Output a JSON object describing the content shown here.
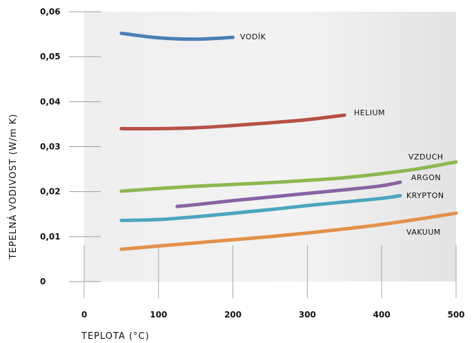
{
  "chart_data": {
    "type": "line",
    "xlabel": "TEPLOTA (°C)",
    "ylabel": "TEPELNÁ VODIVOST (W/m K)",
    "xlim": [
      0,
      500
    ],
    "ylim": [
      0,
      0.06
    ],
    "x_ticks": [
      0,
      100,
      200,
      300,
      400,
      500
    ],
    "x_tick_labels": [
      "0",
      "100",
      "200",
      "300",
      "400",
      "500"
    ],
    "y_ticks": [
      0,
      0.01,
      0.02,
      0.03,
      0.04,
      0.05,
      0.06
    ],
    "y_tick_labels": [
      "0",
      "0,01",
      "0,02",
      "0,03",
      "0,04",
      "0,05",
      "0,06"
    ],
    "grid": false,
    "series": [
      {
        "name": "VODÍK",
        "color": "#4a7fb5",
        "points": [
          [
            50,
            0.0552
          ],
          [
            100,
            0.0542
          ],
          [
            150,
            0.0539
          ],
          [
            200,
            0.0543
          ]
        ]
      },
      {
        "name": "HELIUM",
        "color": "#b85048",
        "points": [
          [
            50,
            0.034
          ],
          [
            100,
            0.034
          ],
          [
            150,
            0.0342
          ],
          [
            200,
            0.0347
          ],
          [
            250,
            0.0353
          ],
          [
            300,
            0.036
          ],
          [
            350,
            0.037
          ]
        ]
      },
      {
        "name": "VZDUCH",
        "color": "#8cb850",
        "points": [
          [
            50,
            0.0201
          ],
          [
            100,
            0.0207
          ],
          [
            150,
            0.0212
          ],
          [
            200,
            0.0216
          ],
          [
            250,
            0.022
          ],
          [
            300,
            0.0225
          ],
          [
            350,
            0.0231
          ],
          [
            400,
            0.024
          ],
          [
            450,
            0.0251
          ],
          [
            500,
            0.0266
          ]
        ]
      },
      {
        "name": "ARGON",
        "color": "#8a63a3",
        "points": [
          [
            125,
            0.0167
          ],
          [
            150,
            0.0171
          ],
          [
            200,
            0.018
          ],
          [
            250,
            0.0188
          ],
          [
            300,
            0.0196
          ],
          [
            350,
            0.0204
          ],
          [
            400,
            0.0213
          ],
          [
            425,
            0.0221
          ]
        ]
      },
      {
        "name": "KRYPTON",
        "color": "#4ba6bd",
        "points": [
          [
            50,
            0.0136
          ],
          [
            100,
            0.0138
          ],
          [
            150,
            0.0144
          ],
          [
            200,
            0.0152
          ],
          [
            250,
            0.016
          ],
          [
            300,
            0.0169
          ],
          [
            350,
            0.0177
          ],
          [
            400,
            0.0185
          ],
          [
            425,
            0.0191
          ]
        ]
      },
      {
        "name": "VAKUUM",
        "color": "#e2914a",
        "points": [
          [
            50,
            0.0072
          ],
          [
            100,
            0.0079
          ],
          [
            150,
            0.0086
          ],
          [
            200,
            0.0093
          ],
          [
            250,
            0.01
          ],
          [
            300,
            0.0108
          ],
          [
            350,
            0.0117
          ],
          [
            400,
            0.0127
          ],
          [
            450,
            0.0139
          ],
          [
            500,
            0.0152
          ]
        ]
      }
    ]
  }
}
